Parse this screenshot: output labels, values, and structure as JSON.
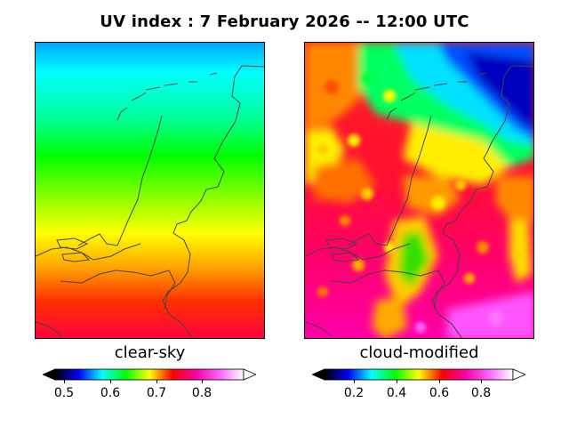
{
  "title": "UV index :  7 February 2026  --  12:00 UTC",
  "panels": [
    {
      "label": "clear-sky",
      "colorbar": {
        "min": 0.48,
        "max": 0.89,
        "ticks": [
          "0.5",
          "0.6",
          "0.7",
          "0.8"
        ],
        "tick_values": [
          0.5,
          0.6,
          0.7,
          0.8
        ]
      }
    },
    {
      "label": "cloud-modified",
      "colorbar": {
        "min": 0.06,
        "max": 0.95,
        "ticks": [
          "0.2",
          "0.4",
          "0.6",
          "0.8"
        ],
        "tick_values": [
          0.2,
          0.4,
          0.6,
          0.8
        ]
      }
    }
  ],
  "colormap": [
    "#000000",
    "#0000ff",
    "#00ffff",
    "#00ff00",
    "#ffff00",
    "#ff0000",
    "#ff00aa",
    "#ff66ff",
    "#ffffff"
  ],
  "outline_color": "#444444"
}
